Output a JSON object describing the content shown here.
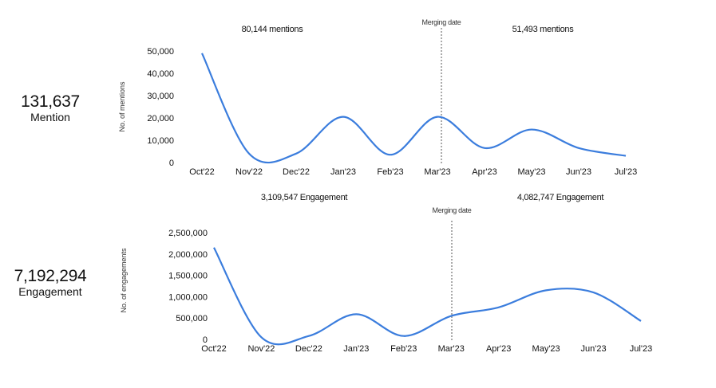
{
  "kpis": [
    {
      "value": "131,637",
      "label": "Mention"
    },
    {
      "value": "7,192,294",
      "label": "Engagement"
    }
  ],
  "colors": {
    "line": "#3B7DDD"
  },
  "chart_data": [
    {
      "type": "line",
      "ylabel": "No. of mentions",
      "yticks": [
        "0",
        "10,000",
        "20,000",
        "30,000",
        "40,000",
        "50,000"
      ],
      "ylim": [
        0,
        50000
      ],
      "categories": [
        "Oct'22",
        "Nov'22",
        "Dec'22",
        "Jan'23",
        "Feb'23",
        "Mar'23",
        "Apr'23",
        "May'23",
        "Jun'23",
        "Jul'23"
      ],
      "values": [
        49000,
        4000,
        4000,
        20500,
        3500,
        20500,
        6500,
        14800,
        6500,
        3000
      ],
      "merge_label": "Merging date",
      "merge_at": "Mar'23",
      "annotations": [
        "80,144 mentions",
        "51,493 mentions"
      ]
    },
    {
      "type": "line",
      "ylabel": "No. of engagements",
      "yticks": [
        "0",
        "500,000",
        "1,000,000",
        "1,500,000",
        "2,000,000",
        "2,500,000"
      ],
      "ylim": [
        0,
        2500000
      ],
      "categories": [
        "Oct'22",
        "Nov'22",
        "Dec'22",
        "Jan'23",
        "Feb'23",
        "Mar'23",
        "Apr'23",
        "May'23",
        "Jun'23",
        "Jul'23"
      ],
      "values": [
        2150000,
        50000,
        80000,
        590000,
        80000,
        550000,
        750000,
        1150000,
        1100000,
        430000
      ],
      "merge_label": "Merging date",
      "merge_at": "Mar'23",
      "annotations": [
        "3,109,547 Engagement",
        "4,082,747 Engagement"
      ]
    }
  ]
}
